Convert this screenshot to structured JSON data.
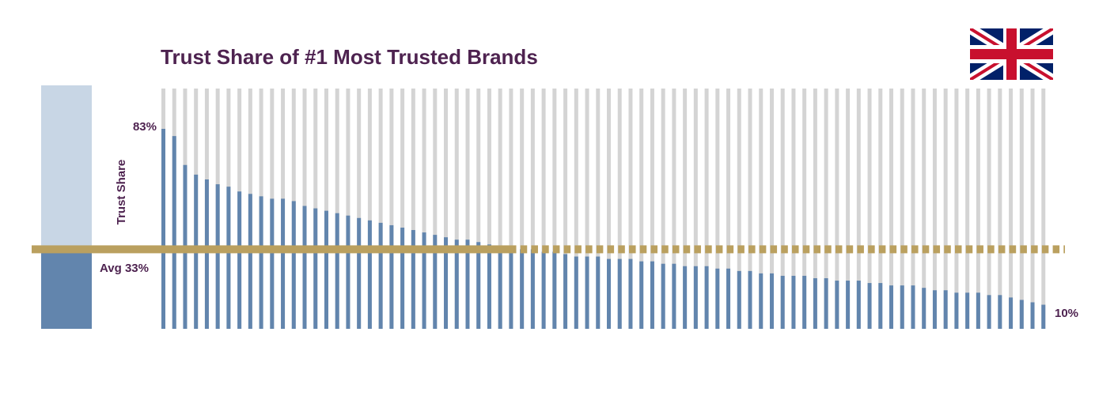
{
  "colors": {
    "title": "#4e2350",
    "bar": "#6285ad",
    "track": "#d4d4d4",
    "avg_line": "#baa05f",
    "summary_top": "#c8d6e5",
    "summary_bottom": "#6285ad",
    "flag_blue": "#012169",
    "flag_red": "#c8102e",
    "flag_white": "#ffffff"
  },
  "flag_icon": "uk-flag-icon",
  "chart_data": {
    "type": "bar",
    "title": "Trust Share of #1 Most Trusted Brands",
    "ylabel": "Trust Share",
    "ylim": [
      0,
      83
    ],
    "max_label": "83%",
    "min_label": "10%",
    "average": 33,
    "average_label": "Avg 33%",
    "grid": false,
    "legend": "none",
    "values": [
      83,
      80,
      68,
      64,
      62,
      60,
      59,
      57,
      56,
      55,
      54,
      54,
      53,
      51,
      50,
      49,
      48,
      47,
      46,
      45,
      44,
      43,
      42,
      41,
      40,
      39,
      38,
      37,
      37,
      36,
      35,
      34,
      34,
      33,
      33,
      32,
      32,
      31,
      30,
      30,
      30,
      29,
      29,
      29,
      28,
      28,
      27,
      27,
      26,
      26,
      26,
      25,
      25,
      24,
      24,
      23,
      23,
      22,
      22,
      22,
      21,
      21,
      20,
      20,
      20,
      19,
      19,
      18,
      18,
      18,
      17,
      16,
      16,
      15,
      15,
      15,
      14,
      14,
      13,
      12,
      11,
      10
    ]
  }
}
